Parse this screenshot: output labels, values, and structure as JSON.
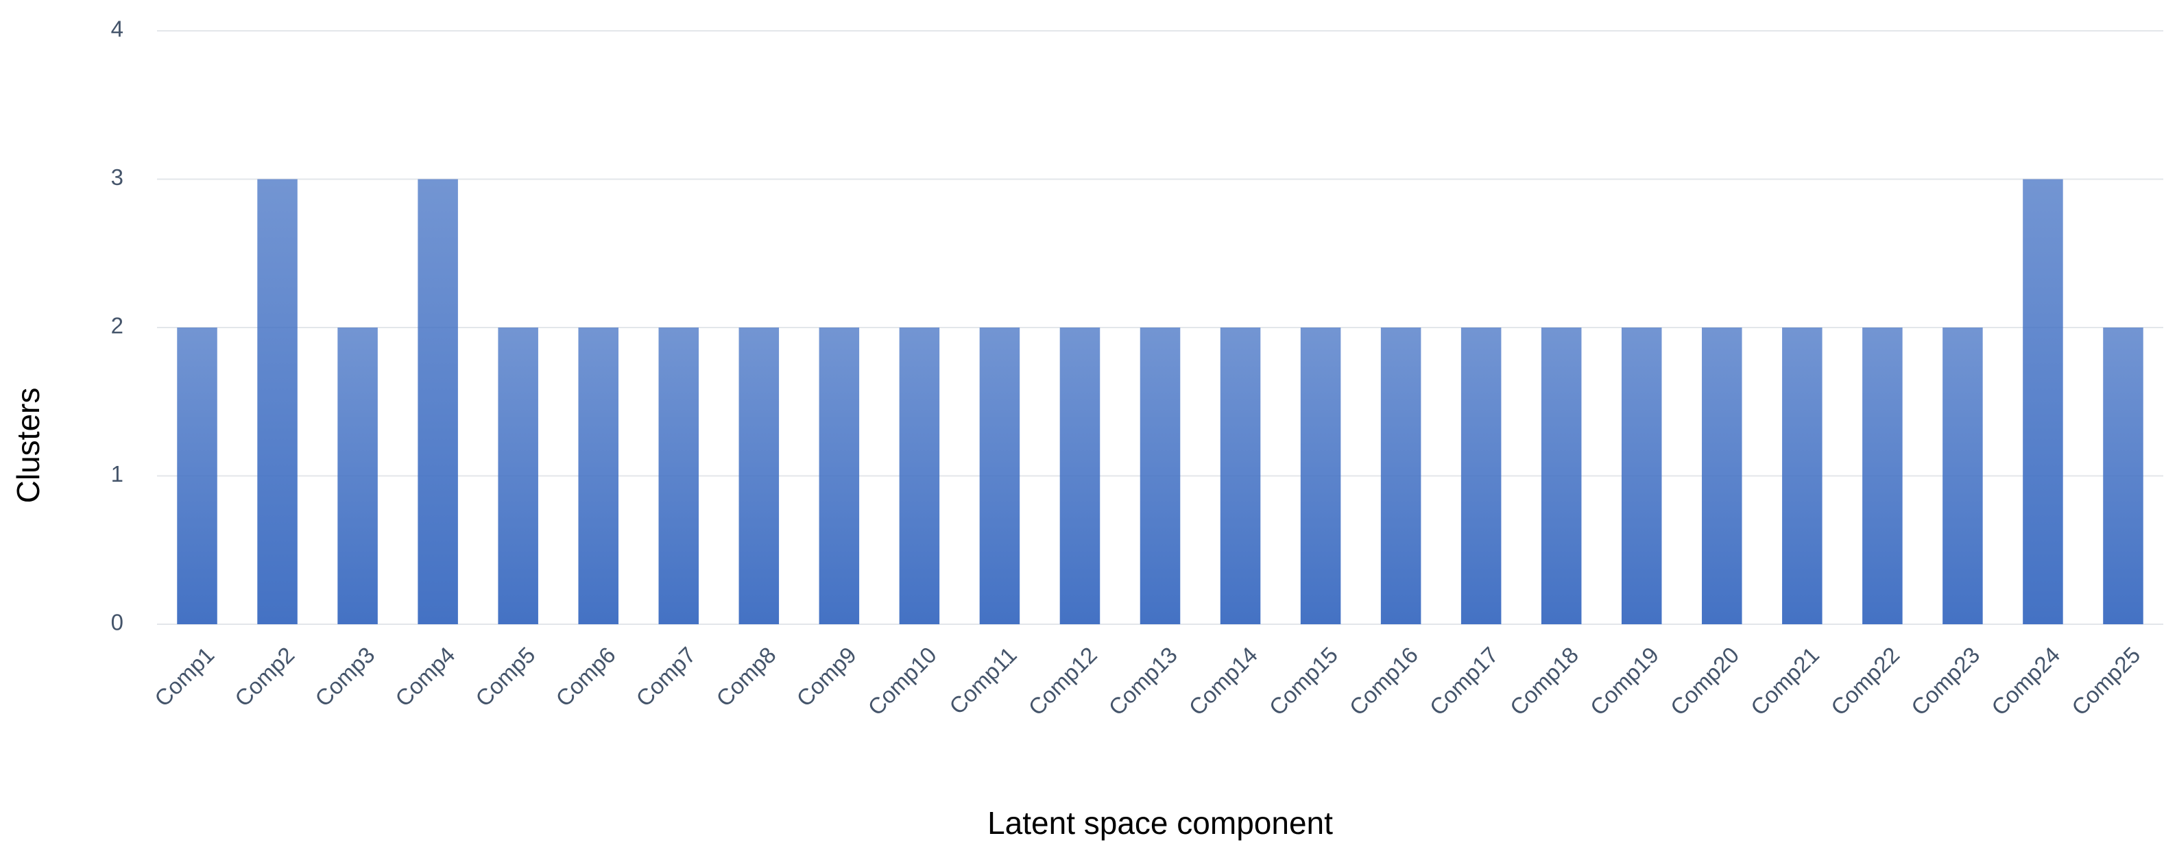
{
  "chart_data": {
    "type": "bar",
    "x_label": "Latent space component",
    "y_label": "Clusters",
    "categories": [
      "Comp1",
      "Comp2",
      "Comp3",
      "Comp4",
      "Comp5",
      "Comp6",
      "Comp7",
      "Comp8",
      "Comp9",
      "Comp10",
      "Comp11",
      "Comp12",
      "Comp13",
      "Comp14",
      "Comp15",
      "Comp16",
      "Comp17",
      "Comp18",
      "Comp19",
      "Comp20",
      "Comp21",
      "Comp22",
      "Comp23",
      "Comp24",
      "Comp25"
    ],
    "values": [
      2,
      3,
      2,
      3,
      2,
      2,
      2,
      2,
      2,
      2,
      2,
      2,
      2,
      2,
      2,
      2,
      2,
      2,
      2,
      2,
      2,
      2,
      2,
      3,
      2
    ],
    "color": "#4472c4",
    "ylim": [
      0,
      4
    ],
    "yticks": [
      0,
      1,
      2,
      3,
      4
    ],
    "grid": true
  }
}
